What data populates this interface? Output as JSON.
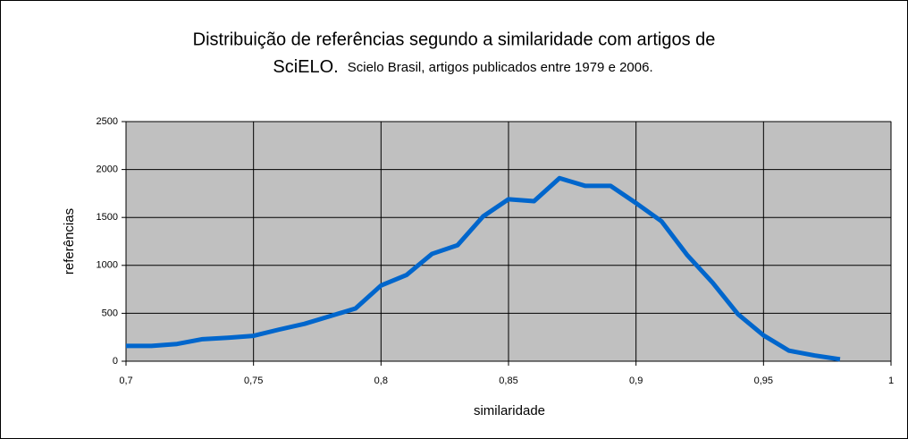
{
  "chart_data": {
    "type": "line",
    "title": [
      "Distribuição de referências segundo a similaridade com artigos de",
      "SciELO."
    ],
    "subtitle": "Scielo Brasil, artigos publicados entre 1979 e 2006.",
    "x_label": "similaridade",
    "y_label": "referências",
    "x": [
      0.7,
      0.71,
      0.72,
      0.73,
      0.74,
      0.75,
      0.76,
      0.77,
      0.78,
      0.79,
      0.8,
      0.81,
      0.82,
      0.83,
      0.84,
      0.85,
      0.86,
      0.87,
      0.88,
      0.89,
      0.9,
      0.91,
      0.92,
      0.93,
      0.94,
      0.95,
      0.96,
      0.97,
      0.98
    ],
    "series": [
      {
        "name": "referências",
        "color": "#0066cc",
        "values": [
          160,
          160,
          180,
          230,
          245,
          265,
          330,
          390,
          470,
          550,
          790,
          900,
          1120,
          1210,
          1510,
          1690,
          1670,
          1910,
          1830,
          1830,
          1650,
          1460,
          1110,
          820,
          490,
          270,
          110,
          60,
          20
        ]
      }
    ],
    "xlim": [
      0.7,
      1
    ],
    "xticks": [
      {
        "value": 0.7,
        "label": "0,7"
      },
      {
        "value": 0.75,
        "label": "0,75"
      },
      {
        "value": 0.8,
        "label": "0,8"
      },
      {
        "value": 0.85,
        "label": "0,85"
      },
      {
        "value": 0.9,
        "label": "0,9"
      },
      {
        "value": 0.95,
        "label": "0,95"
      },
      1
    ],
    "ylim": [
      0,
      2500
    ],
    "yticks": [
      0,
      500,
      1000,
      1500,
      2000,
      2500
    ],
    "grid": true,
    "plot_background": "#c0c0c0"
  }
}
